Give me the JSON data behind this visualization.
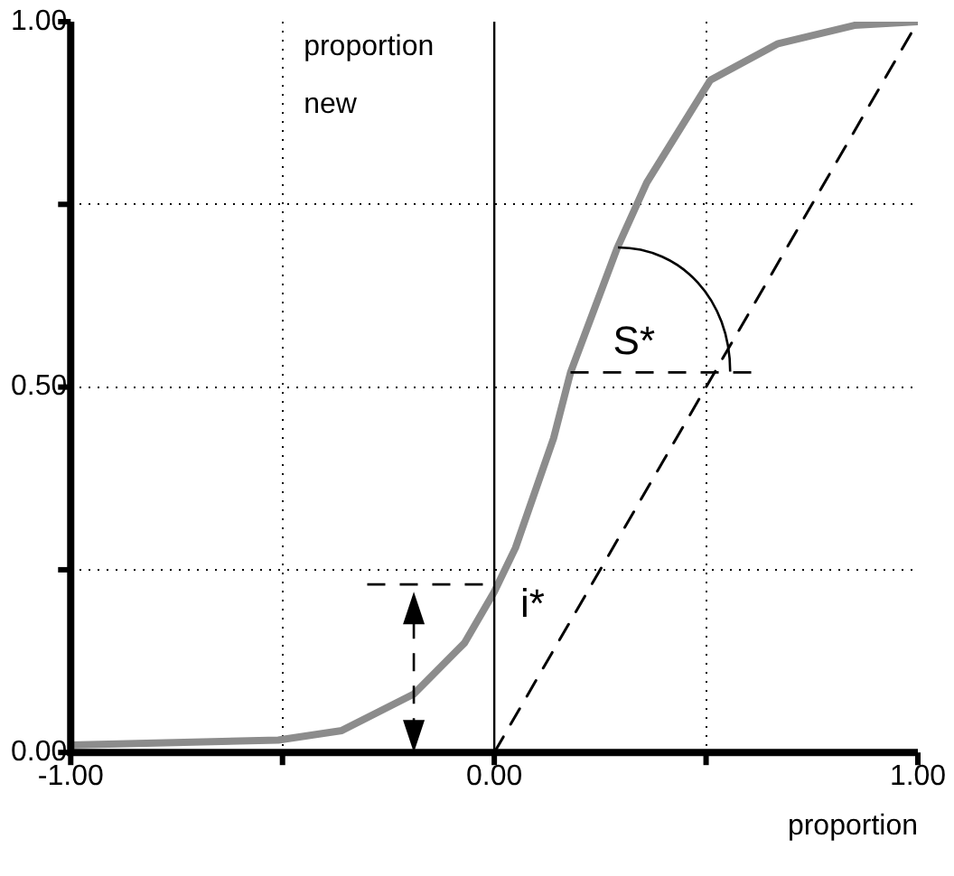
{
  "chart_data": {
    "type": "line",
    "xlabel": "proportion",
    "ylabel": "proportion new",
    "x": [
      -1,
      -0.51,
      -0.36,
      -0.19,
      -0.07,
      0,
      0.05,
      0.14,
      0.18,
      0.29,
      0.36,
      0.51,
      0.67,
      0.85,
      1
    ],
    "series": [
      {
        "color": "#8c8c8c",
        "values": [
          0.01,
          0.017,
          0.03,
          0.08,
          0.15,
          0.22,
          0.28,
          0.43,
          0.52,
          0.69,
          0.78,
          0.92,
          0.97,
          0.995,
          1
        ]
      },
      {
        "color": "#000000",
        "x": [
          0,
          1
        ],
        "values": [
          0,
          1
        ],
        "line_style": "dashed"
      }
    ],
    "xlim": [
      -1,
      1
    ],
    "ylim": [
      0,
      1
    ],
    "xticks": [
      {
        "value": -1,
        "label": "-1.00"
      },
      {
        "value": -0.5,
        "label": null
      },
      {
        "value": 0,
        "label": "0.00"
      },
      {
        "value": 0.5,
        "label": null
      },
      {
        "value": 1,
        "label": "1.00"
      }
    ],
    "yticks": [
      {
        "value": 0,
        "label": "0.00"
      },
      {
        "value": 0.25,
        "label": null
      },
      {
        "value": 0.5,
        "label": "0.50"
      },
      {
        "value": 0.75,
        "label": null
      },
      {
        "value": 1,
        "label": "1.00"
      }
    ],
    "grid": true,
    "marker": "none",
    "line_style": "solid",
    "ref_lines": [
      {
        "axis": "x",
        "value": 0,
        "color": "#000000"
      }
    ],
    "annotations": [
      "S*",
      "i*"
    ]
  }
}
